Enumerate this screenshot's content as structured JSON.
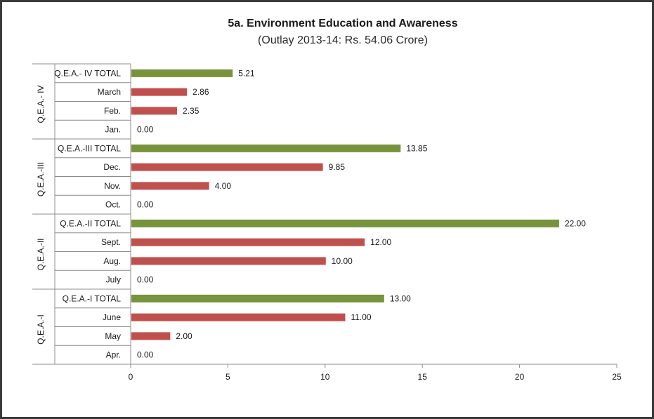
{
  "title": "5a. Environment Education and Awareness",
  "subtitle": "(Outlay 2013-14: Rs. 54.06 Crore)",
  "chart_data": {
    "type": "bar",
    "orientation": "horizontal",
    "xlim": [
      0,
      25
    ],
    "xticks": [
      0,
      5,
      10,
      15,
      20,
      25
    ],
    "grid": false,
    "legend": "none",
    "colors": {
      "month": "#c0504d",
      "total": "#77933c"
    },
    "groups": [
      {
        "name": "Q.E.A.- IV",
        "rows": [
          {
            "label": "Q.E.A.- IV TOTAL",
            "value": 5.21,
            "display": "5.21",
            "kind": "total"
          },
          {
            "label": "March",
            "value": 2.86,
            "display": "2.86",
            "kind": "month"
          },
          {
            "label": "Feb.",
            "value": 2.35,
            "display": "2.35",
            "kind": "month"
          },
          {
            "label": "Jan.",
            "value": 0,
            "display": "0.00",
            "kind": "month"
          }
        ]
      },
      {
        "name": "Q.E.A.-III",
        "rows": [
          {
            "label": "Q.E.A.-III TOTAL",
            "value": 13.85,
            "display": "13.85",
            "kind": "total"
          },
          {
            "label": "Dec.",
            "value": 9.85,
            "display": "9.85",
            "kind": "month"
          },
          {
            "label": "Nov.",
            "value": 4.0,
            "display": "4.00",
            "kind": "month"
          },
          {
            "label": "Oct.",
            "value": 0,
            "display": "0.00",
            "kind": "month"
          }
        ]
      },
      {
        "name": "Q.E.A.-II",
        "rows": [
          {
            "label": "Q.E.A.-II TOTAL",
            "value": 22.0,
            "display": "22.00",
            "kind": "total"
          },
          {
            "label": "Sept.",
            "value": 12.0,
            "display": "12.00",
            "kind": "month"
          },
          {
            "label": "Aug.",
            "value": 10.0,
            "display": "10.00",
            "kind": "month"
          },
          {
            "label": "July",
            "value": 0,
            "display": "0.00",
            "kind": "month"
          }
        ]
      },
      {
        "name": "Q.E.A.-I",
        "rows": [
          {
            "label": "Q.E.A.-I TOTAL",
            "value": 13.0,
            "display": "13.00",
            "kind": "total"
          },
          {
            "label": "June",
            "value": 11.0,
            "display": "11.00",
            "kind": "month"
          },
          {
            "label": "May",
            "value": 2.0,
            "display": "2.00",
            "kind": "month"
          },
          {
            "label": "Apr.",
            "value": 0,
            "display": "0.00",
            "kind": "month"
          }
        ]
      }
    ]
  }
}
